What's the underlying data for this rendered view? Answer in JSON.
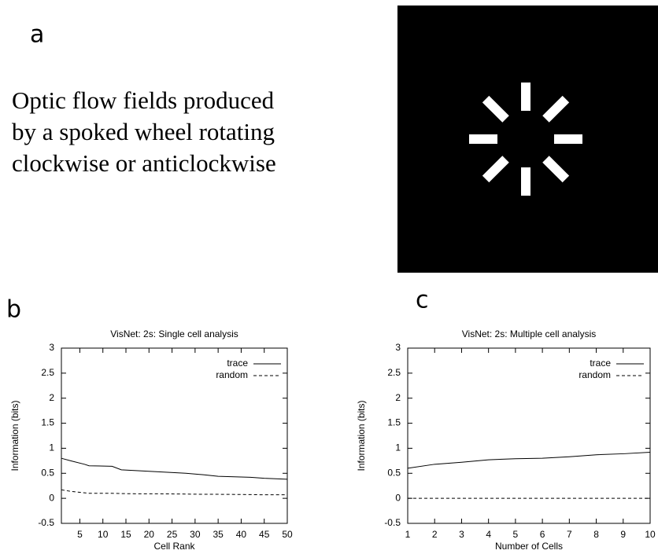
{
  "panels": {
    "a": {
      "label": "a",
      "text": [
        "Optic flow fields produced",
        "by a spoked wheel rotating",
        "clockwise or anticlockwise"
      ]
    },
    "b": {
      "label": "b"
    },
    "c": {
      "label": "c"
    }
  },
  "chart_data": [
    {
      "type": "line",
      "title": "VisNet: 2s:  Single cell analysis",
      "x_label": "Cell Rank",
      "y_label": "Information (bits)",
      "x": [
        1,
        3,
        6,
        7,
        12,
        14,
        18,
        22,
        28,
        32,
        35,
        42,
        45,
        50
      ],
      "series": [
        {
          "name": "trace",
          "color": "#000000",
          "line_style": "solid",
          "values": [
            0.8,
            0.75,
            0.68,
            0.65,
            0.64,
            0.57,
            0.55,
            0.53,
            0.5,
            0.47,
            0.44,
            0.42,
            0.4,
            0.38
          ]
        },
        {
          "name": "random",
          "color": "#000000",
          "line_style": "dashed",
          "values": [
            0.17,
            0.14,
            0.11,
            0.1,
            0.1,
            0.095,
            0.09,
            0.09,
            0.085,
            0.08,
            0.08,
            0.075,
            0.07,
            0.07
          ]
        }
      ],
      "xlim": [
        1,
        50
      ],
      "xticks": [
        5,
        10,
        15,
        20,
        25,
        30,
        35,
        40,
        45,
        50
      ],
      "ylim": [
        -0.5,
        3
      ],
      "yticks": [
        -0.5,
        0,
        0.5,
        1,
        1.5,
        2,
        2.5,
        3
      ],
      "legend": "upper right"
    },
    {
      "type": "line",
      "title": "VisNet: 2s: Multiple cell analysis",
      "x_label": "Number of Cells",
      "y_label": "Information (bits)",
      "x": [
        1,
        2,
        3,
        4,
        5,
        6,
        7,
        8,
        9,
        10
      ],
      "series": [
        {
          "name": "trace",
          "color": "#000000",
          "line_style": "solid",
          "values": [
            0.6,
            0.68,
            0.72,
            0.77,
            0.79,
            0.8,
            0.83,
            0.87,
            0.89,
            0.92
          ]
        },
        {
          "name": "random",
          "color": "#000000",
          "line_style": "dashed",
          "values": [
            0,
            0,
            0,
            0,
            0,
            0,
            0,
            0,
            0,
            0
          ]
        }
      ],
      "xlim": [
        1,
        10
      ],
      "xticks": [
        1,
        2,
        3,
        4,
        5,
        6,
        7,
        8,
        9,
        10
      ],
      "ylim": [
        -0.5,
        3
      ],
      "yticks": [
        -0.5,
        0,
        0.5,
        1,
        1.5,
        2,
        2.5,
        3
      ],
      "legend": "upper right"
    }
  ]
}
